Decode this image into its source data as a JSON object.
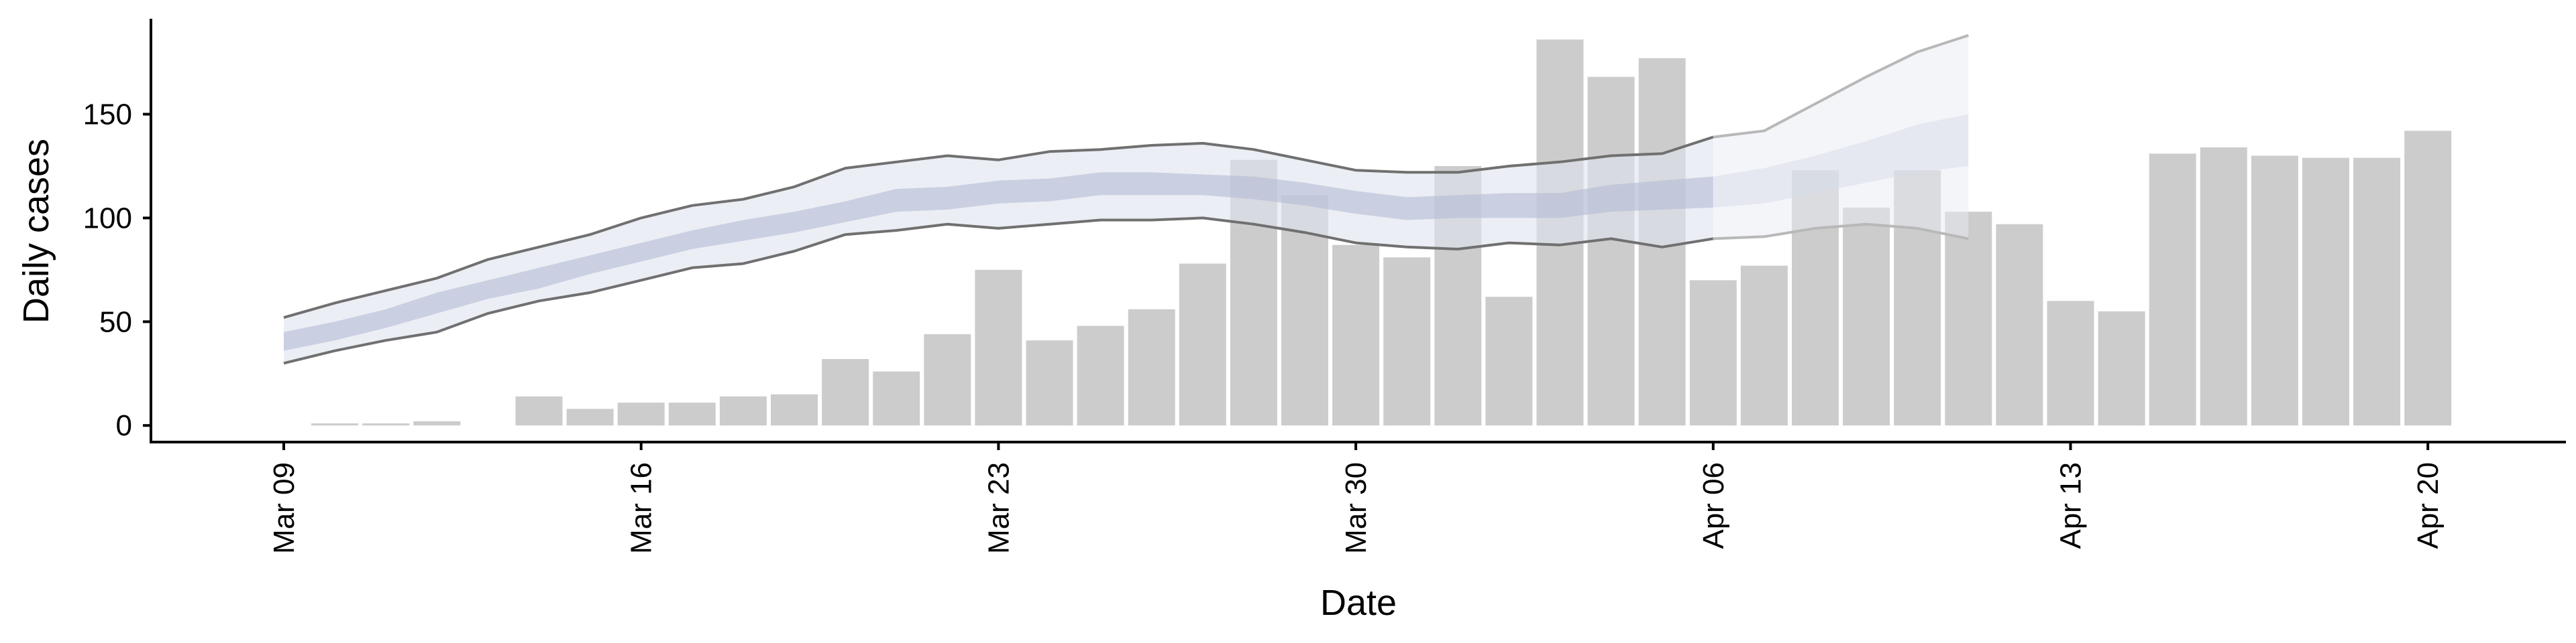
{
  "chart_data": {
    "type": "bar",
    "xlabel": "Date",
    "ylabel": "Daily cases",
    "ylim": [
      -8,
      196
    ],
    "yticks": [
      0,
      50,
      100,
      150
    ],
    "xticks": [
      "Mar 09",
      "Mar 16",
      "Mar 23",
      "Mar 30",
      "Apr 06",
      "Apr 13",
      "Apr 20"
    ],
    "grid": false,
    "colors": {
      "bars": "#cccccc",
      "band_outer": "#dfe2ee",
      "band_inner": "#b4bdd6",
      "band_outer_projection": "#e9ebf3",
      "band_inner_projection": "#d6dbe9",
      "envelope_line": "#707070",
      "envelope_line_projection": "#b8b8b8",
      "axis": "#000000"
    },
    "bars": {
      "dates": [
        "Mar 09",
        "Mar 10",
        "Mar 11",
        "Mar 12",
        "Mar 13",
        "Mar 14",
        "Mar 15",
        "Mar 16",
        "Mar 17",
        "Mar 18",
        "Mar 19",
        "Mar 20",
        "Mar 21",
        "Mar 22",
        "Mar 23",
        "Mar 24",
        "Mar 25",
        "Mar 26",
        "Mar 27",
        "Mar 28",
        "Mar 29",
        "Mar 30",
        "Mar 31",
        "Apr 01",
        "Apr 02",
        "Apr 03",
        "Apr 04",
        "Apr 05",
        "Apr 06",
        "Apr 07",
        "Apr 08",
        "Apr 09",
        "Apr 10",
        "Apr 11",
        "Apr 12",
        "Apr 13",
        "Apr 14",
        "Apr 15",
        "Apr 16",
        "Apr 17",
        "Apr 18",
        "Apr 19",
        "Apr 20"
      ],
      "values": [
        0,
        1,
        1,
        2,
        0,
        14,
        8,
        11,
        11,
        14,
        15,
        32,
        26,
        44,
        75,
        41,
        48,
        56,
        78,
        128,
        111,
        87,
        81,
        125,
        62,
        186,
        168,
        177,
        70,
        77,
        123,
        105,
        123,
        103,
        97,
        60,
        55,
        131,
        134,
        130,
        129,
        129,
        142
      ]
    },
    "estimate": {
      "dates": [
        "Mar 09",
        "Mar 10",
        "Mar 11",
        "Mar 12",
        "Mar 13",
        "Mar 14",
        "Mar 15",
        "Mar 16",
        "Mar 17",
        "Mar 18",
        "Mar 19",
        "Mar 20",
        "Mar 21",
        "Mar 22",
        "Mar 23",
        "Mar 24",
        "Mar 25",
        "Mar 26",
        "Mar 27",
        "Mar 28",
        "Mar 29",
        "Mar 30",
        "Mar 31",
        "Apr 01",
        "Apr 02",
        "Apr 03",
        "Apr 04",
        "Apr 05",
        "Apr 06",
        "Apr 07",
        "Apr 08",
        "Apr 09",
        "Apr 10",
        "Apr 11"
      ],
      "outer_upper": [
        52,
        59,
        65,
        71,
        80,
        86,
        92,
        100,
        106,
        109,
        115,
        124,
        127,
        130,
        128,
        132,
        133,
        135,
        136,
        133,
        128,
        123,
        122,
        122,
        125,
        127,
        130,
        131,
        139,
        142,
        155,
        168,
        180,
        188
      ],
      "outer_lower": [
        30,
        36,
        41,
        45,
        54,
        60,
        64,
        70,
        76,
        78,
        84,
        92,
        94,
        97,
        95,
        97,
        99,
        99,
        100,
        97,
        93,
        88,
        86,
        85,
        88,
        87,
        90,
        86,
        90,
        91,
        95,
        97,
        95,
        90
      ],
      "inner_upper": [
        45,
        50,
        56,
        64,
        70,
        76,
        82,
        88,
        94,
        99,
        103,
        108,
        114,
        115,
        118,
        119,
        122,
        122,
        121,
        120,
        117,
        113,
        110,
        111,
        112,
        112,
        116,
        118,
        120,
        124,
        130,
        137,
        145,
        150
      ],
      "inner_lower": [
        36,
        41,
        47,
        54,
        61,
        66,
        73,
        79,
        85,
        89,
        93,
        98,
        103,
        104,
        107,
        108,
        111,
        111,
        111,
        109,
        106,
        102,
        99,
        100,
        100,
        100,
        103,
        104,
        105,
        107,
        112,
        117,
        122,
        125
      ],
      "projection_start": "Apr 06"
    }
  }
}
